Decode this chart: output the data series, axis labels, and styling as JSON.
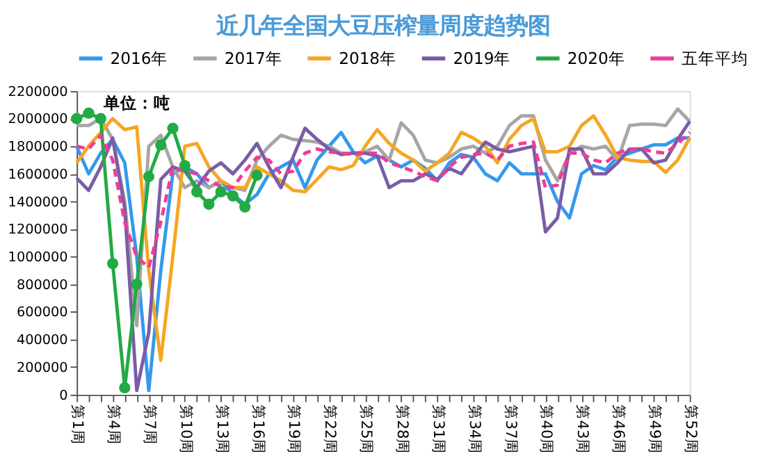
{
  "chart_data": {
    "type": "line",
    "title": "近几年全国大豆压榨量周度趋势图",
    "annotations": [
      "单位：吨"
    ],
    "categories": [
      "第1周",
      null,
      null,
      "第4周",
      null,
      null,
      "第7周",
      null,
      null,
      "第10周",
      null,
      null,
      "第13周",
      null,
      null,
      "第16周",
      null,
      null,
      "第19周",
      null,
      null,
      "第22周",
      null,
      null,
      "第25周",
      null,
      null,
      "第28周",
      null,
      null,
      "第31周",
      null,
      null,
      "第34周",
      null,
      null,
      "第37周",
      null,
      null,
      "第40周",
      null,
      null,
      "第43周",
      null,
      null,
      "第46周",
      null,
      null,
      "第49周",
      null,
      null,
      "第52周"
    ],
    "ylim": [
      0,
      2200000
    ],
    "yticks": [
      0,
      200000,
      400000,
      600000,
      800000,
      1000000,
      1200000,
      1400000,
      1600000,
      1800000,
      2000000,
      2200000
    ],
    "grid": false,
    "legend": "top",
    "marker": "none",
    "line_style": "solid",
    "series": [
      {
        "name": "2016年",
        "color": "#3399ee",
        "values": [
          1800000,
          1600000,
          1750000,
          1850000,
          1680000,
          1000000,
          30000,
          900000,
          1600000,
          1650000,
          1600000,
          1500000,
          1550000,
          1450000,
          1380000,
          1450000,
          1600000,
          1650000,
          1700000,
          1500000,
          1700000,
          1800000,
          1900000,
          1760000,
          1680000,
          1730000,
          1700000,
          1650000,
          1700000,
          1640000,
          1550000,
          1680000,
          1740000,
          1720000,
          1600000,
          1550000,
          1680000,
          1600000,
          1600000,
          1600000,
          1400000,
          1280000,
          1600000,
          1660000,
          1630000,
          1720000,
          1750000,
          1780000,
          1810000,
          1810000,
          1860000,
          1860000
        ]
      },
      {
        "name": "2017年",
        "color": "#a6a6a6",
        "values": [
          1950000,
          1950000,
          2000000,
          1850000,
          1400000,
          500000,
          1800000,
          1880000,
          1650000,
          1500000,
          1550000,
          1500000,
          1550000,
          1500000,
          1480000,
          1700000,
          1800000,
          1880000,
          1850000,
          1840000,
          1830000,
          1800000,
          1750000,
          1750000,
          1760000,
          1800000,
          1700000,
          1970000,
          1880000,
          1700000,
          1680000,
          1720000,
          1780000,
          1800000,
          1750000,
          1800000,
          1950000,
          2020000,
          2020000,
          1700000,
          1550000,
          1750000,
          1800000,
          1780000,
          1800000,
          1700000,
          1950000,
          1960000,
          1960000,
          1950000,
          2070000,
          1980000
        ]
      },
      {
        "name": "2018年",
        "color": "#f5a623",
        "values": [
          1680000,
          1800000,
          1900000,
          2000000,
          1920000,
          1940000,
          900000,
          250000,
          1000000,
          1800000,
          1820000,
          1650000,
          1550000,
          1500000,
          1500000,
          1650000,
          1600000,
          1550000,
          1480000,
          1470000,
          1560000,
          1650000,
          1630000,
          1660000,
          1800000,
          1920000,
          1820000,
          1750000,
          1700000,
          1620000,
          1680000,
          1750000,
          1900000,
          1860000,
          1800000,
          1680000,
          1850000,
          1950000,
          2000000,
          1760000,
          1760000,
          1800000,
          1950000,
          2020000,
          1880000,
          1720000,
          1700000,
          1690000,
          1690000,
          1610000,
          1700000,
          1860000
        ]
      },
      {
        "name": "2019年",
        "color": "#7a5ca6",
        "values": [
          1570000,
          1480000,
          1650000,
          1860000,
          1350000,
          30000,
          450000,
          1560000,
          1650000,
          1620000,
          1500000,
          1620000,
          1680000,
          1600000,
          1700000,
          1820000,
          1650000,
          1500000,
          1720000,
          1930000,
          1850000,
          1780000,
          1740000,
          1750000,
          1750000,
          1730000,
          1500000,
          1550000,
          1550000,
          1600000,
          1560000,
          1640000,
          1600000,
          1720000,
          1830000,
          1780000,
          1760000,
          1780000,
          1800000,
          1180000,
          1280000,
          1780000,
          1780000,
          1600000,
          1600000,
          1680000,
          1780000,
          1780000,
          1680000,
          1700000,
          1850000,
          1980000
        ]
      },
      {
        "name": "2020年",
        "color": "#22aa44",
        "marker": "circle",
        "values": [
          2000000,
          2040000,
          2000000,
          950000,
          50000,
          800000,
          1580000,
          1810000,
          1930000,
          1660000,
          1470000,
          1380000,
          1470000,
          1440000,
          1360000,
          1590000,
          null,
          null,
          null,
          null,
          null,
          null,
          null,
          null,
          null,
          null,
          null,
          null,
          null,
          null,
          null,
          null,
          null,
          null,
          null,
          null,
          null,
          null,
          null,
          null,
          null,
          null,
          null,
          null,
          null,
          null,
          null,
          null,
          null,
          null,
          null,
          null
        ]
      },
      {
        "name": "五年平均",
        "color": "#ee3d96",
        "line_style": "dashed",
        "values": [
          1800000,
          1780000,
          1880000,
          1700000,
          1250000,
          1000000,
          920000,
          1250000,
          1650000,
          1620000,
          1600000,
          1550000,
          1510000,
          1500000,
          1620000,
          1720000,
          1700000,
          1600000,
          1620000,
          1750000,
          1780000,
          1760000,
          1750000,
          1740000,
          1750000,
          1750000,
          1680000,
          1650000,
          1620000,
          1580000,
          1550000,
          1650000,
          1720000,
          1740000,
          1750000,
          1700000,
          1800000,
          1820000,
          1830000,
          1500000,
          1520000,
          1750000,
          1750000,
          1700000,
          1680000,
          1750000,
          1780000,
          1780000,
          1760000,
          1750000,
          1820000,
          1900000
        ]
      }
    ]
  }
}
